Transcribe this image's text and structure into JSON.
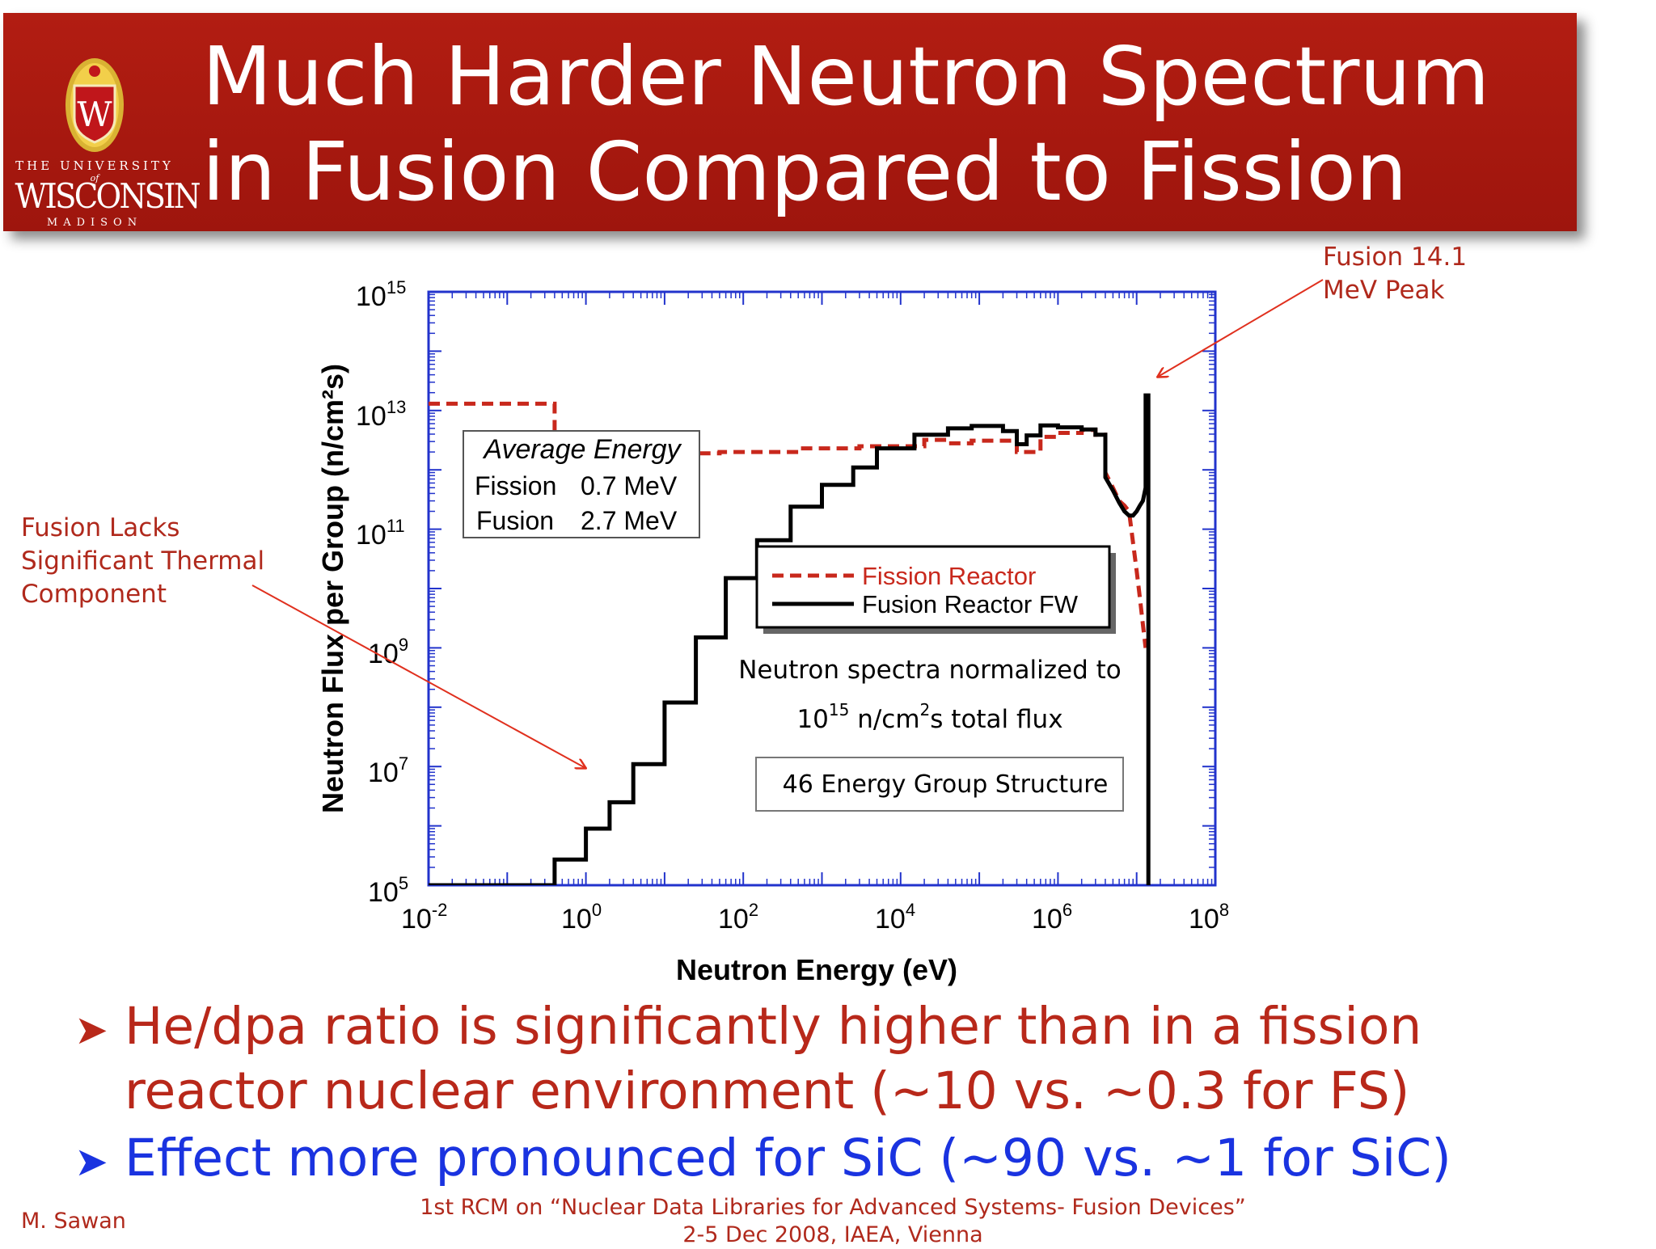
{
  "title": {
    "line1": "Much Harder Neutron Spectrum",
    "line2": "in Fusion Compared to Fission"
  },
  "logo": {
    "shield_letter": "W",
    "top_text": "THE UNIVERSITY",
    "of_text": "of",
    "name": "WISCONSIN",
    "bottom_text": "MADISON"
  },
  "annotations": {
    "fusion_peak": [
      "Fusion 14.1",
      "MeV Peak"
    ],
    "thermal": [
      "Fusion Lacks",
      "Significant Thermal",
      "Component"
    ]
  },
  "chart_data": {
    "type": "line",
    "xlabel": "Neutron Energy (eV)",
    "ylabel": "Neutron Flux per Group (n/cm²s)",
    "x_scale": "log",
    "y_scale": "log",
    "xlim": [
      0.01,
      100000000
    ],
    "ylim": [
      100000,
      1000000000000000
    ],
    "x_ticks": [
      {
        "base": "10",
        "exp": "-2"
      },
      {
        "base": "10",
        "exp": "0"
      },
      {
        "base": "10",
        "exp": "2"
      },
      {
        "base": "10",
        "exp": "4"
      },
      {
        "base": "10",
        "exp": "6"
      },
      {
        "base": "10",
        "exp": "8"
      }
    ],
    "y_ticks": [
      {
        "base": "10",
        "exp": "15"
      },
      {
        "base": "10",
        "exp": "13"
      },
      {
        "base": "10",
        "exp": "11"
      },
      {
        "base": "10",
        "exp": "9"
      },
      {
        "base": "10",
        "exp": "7"
      },
      {
        "base": "10",
        "exp": "5"
      }
    ],
    "legend": {
      "position": "center-right",
      "entries": [
        "Fission Reactor",
        "Fusion Reactor FW"
      ]
    },
    "series": [
      {
        "name": "Fission Reactor",
        "color": "#c8281c",
        "style": "dashed",
        "points": [
          [
            0.01,
            13000000000000
          ],
          [
            0.4,
            13000000000000
          ],
          [
            0.4,
            2000000000000
          ],
          [
            8,
            2000000000000
          ],
          [
            8,
            1900000000000
          ],
          [
            50,
            1900000000000
          ],
          [
            50,
            2000000000000
          ],
          [
            500,
            2000000000000
          ],
          [
            500,
            2300000000000
          ],
          [
            3000,
            2300000000000
          ],
          [
            3000,
            2500000000000
          ],
          [
            20000,
            2500000000000
          ],
          [
            20000,
            3200000000000
          ],
          [
            40000,
            3200000000000
          ],
          [
            40000,
            2800000000000
          ],
          [
            80000,
            2800000000000
          ],
          [
            80000,
            3100000000000
          ],
          [
            300000,
            3100000000000
          ],
          [
            300000,
            2000000000000
          ],
          [
            600000,
            2000000000000
          ],
          [
            600000,
            3600000000000
          ],
          [
            1000000,
            3600000000000
          ],
          [
            1000000,
            4200000000000
          ],
          [
            2000000,
            4200000000000
          ],
          [
            2000000,
            4700000000000
          ],
          [
            3000000,
            4700000000000
          ],
          [
            3000000,
            3900000000000
          ],
          [
            4000000,
            3900000000000
          ],
          [
            4000000,
            900000000000
          ],
          [
            5000000,
            500000000000
          ],
          [
            6000000,
            300000000000
          ],
          [
            7000000,
            250000000000
          ],
          [
            8000000,
            200000000000
          ],
          [
            9000000,
            60000000000
          ],
          [
            10000000,
            20000000000
          ],
          [
            11000000,
            7000000000
          ],
          [
            12000000,
            2500000000
          ],
          [
            13000000,
            1000000000
          ]
        ]
      },
      {
        "name": "Fusion Reactor FW",
        "color": "#000000",
        "style": "solid",
        "points": [
          [
            0.01,
            100000
          ],
          [
            0.4,
            100000
          ],
          [
            0.4,
            270000
          ],
          [
            1,
            270000
          ],
          [
            1,
            900000
          ],
          [
            2,
            900000
          ],
          [
            2,
            2500000
          ],
          [
            4,
            2500000
          ],
          [
            4,
            11000000
          ],
          [
            10,
            11000000
          ],
          [
            10,
            120000000
          ],
          [
            25,
            120000000
          ],
          [
            25,
            1500000000
          ],
          [
            60,
            1500000000
          ],
          [
            60,
            15000000000
          ],
          [
            150,
            15000000000
          ],
          [
            150,
            65000000000
          ],
          [
            400,
            65000000000
          ],
          [
            400,
            240000000000
          ],
          [
            1000,
            240000000000
          ],
          [
            1000,
            560000000000
          ],
          [
            2500,
            560000000000
          ],
          [
            2500,
            1100000000000
          ],
          [
            5000,
            1100000000000
          ],
          [
            5000,
            2300000000000
          ],
          [
            15000,
            2300000000000
          ],
          [
            15000,
            3900000000000
          ],
          [
            40000,
            3900000000000
          ],
          [
            40000,
            5000000000000
          ],
          [
            80000,
            5000000000000
          ],
          [
            80000,
            5500000000000
          ],
          [
            200000,
            5500000000000
          ],
          [
            200000,
            4500000000000
          ],
          [
            300000,
            4500000000000
          ],
          [
            300000,
            2700000000000
          ],
          [
            400000,
            2700000000000
          ],
          [
            400000,
            3800000000000
          ],
          [
            600000,
            3800000000000
          ],
          [
            600000,
            5600000000000
          ],
          [
            1000000,
            5600000000000
          ],
          [
            1000000,
            5200000000000
          ],
          [
            2000000,
            5200000000000
          ],
          [
            2000000,
            4800000000000
          ],
          [
            3000000,
            4800000000000
          ],
          [
            3000000,
            3900000000000
          ],
          [
            4000000,
            3900000000000
          ],
          [
            4000000,
            750000000000
          ],
          [
            5000000,
            450000000000
          ],
          [
            6000000,
            280000000000
          ],
          [
            7000000,
            200000000000
          ],
          [
            8000000,
            170000000000
          ],
          [
            9000000,
            170000000000
          ],
          [
            10000000,
            200000000000
          ],
          [
            11000000,
            250000000000
          ],
          [
            12000000,
            300000000000
          ],
          [
            13000000,
            500000000000
          ],
          [
            13000000,
            18000000000000
          ],
          [
            14100000,
            18000000000000
          ],
          [
            14100000,
            100000
          ]
        ]
      }
    ],
    "inset_boxes": {
      "average_energy": {
        "title": "Average Energy",
        "rows": [
          {
            "label": "Fission",
            "value": "0.7 MeV"
          },
          {
            "label": "Fusion",
            "value": "2.7 MeV"
          }
        ]
      },
      "normalization": {
        "line1": "Neutron spectra normalized to",
        "line2_base": "10",
        "line2_exp": "15",
        "line2_unit_a": "n/cm",
        "line2_unit_exp": "2",
        "line2_unit_b": "s total flux"
      },
      "group_structure": "46 Energy Group Structure"
    }
  },
  "bullets": [
    {
      "symbol": "➤",
      "color": "#b8281a",
      "lines": [
        "He/dpa ratio is significantly higher than in a fission",
        "reactor nuclear environment (~10 vs. ~0.3 for FS)"
      ]
    },
    {
      "symbol": "➤",
      "color": "#1a33e0",
      "lines": [
        "Effect more pronounced for SiC (~90 vs. ~1 for SiC)"
      ]
    }
  ],
  "footer": {
    "author": "M. Sawan",
    "conference_line1": "1st RCM on “Nuclear Data Libraries for Advanced Systems- Fusion Devices”",
    "conference_line2": "2-5 Dec 2008, IAEA, Vienna"
  }
}
